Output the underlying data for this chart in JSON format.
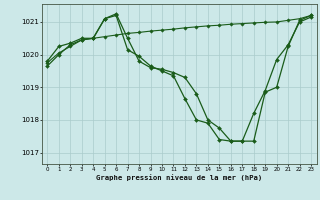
{
  "title": "Graphe pression niveau de la mer (hPa)",
  "bg_color": "#cce8e8",
  "grid_color": "#aacccc",
  "line_color": "#1a5c1a",
  "x_ticks": [
    0,
    1,
    2,
    3,
    4,
    5,
    6,
    7,
    8,
    9,
    10,
    11,
    12,
    13,
    14,
    15,
    16,
    17,
    18,
    19,
    20,
    21,
    22,
    23
  ],
  "y_ticks": [
    1017,
    1018,
    1019,
    1020,
    1021
  ],
  "ylim": [
    1016.65,
    1021.55
  ],
  "xlim": [
    -0.5,
    23.5
  ],
  "series": [
    {
      "x": [
        0,
        1,
        2,
        3,
        4,
        5,
        6,
        7,
        8,
        9,
        10,
        11,
        12,
        13,
        14,
        15,
        16,
        17,
        18,
        19,
        20,
        21,
        22,
        23
      ],
      "y": [
        1019.75,
        1020.05,
        1020.25,
        1020.45,
        1020.5,
        1020.55,
        1020.6,
        1020.65,
        1020.68,
        1020.72,
        1020.75,
        1020.78,
        1020.82,
        1020.85,
        1020.88,
        1020.9,
        1020.93,
        1020.95,
        1020.97,
        1020.99,
        1021.0,
        1021.05,
        1021.1,
        1021.2
      ],
      "marker": "D",
      "markersize": 1.8,
      "linewidth": 0.8
    },
    {
      "x": [
        0,
        1,
        2,
        3,
        4,
        5,
        6,
        7,
        8,
        9,
        10,
        11,
        12,
        13,
        14,
        15,
        16,
        17,
        18,
        19,
        20,
        21,
        22,
        23
      ],
      "y": [
        1019.8,
        1020.25,
        1020.35,
        1020.5,
        1020.5,
        1021.1,
        1021.25,
        1020.5,
        1019.8,
        1019.6,
        1019.55,
        1019.45,
        1019.3,
        1018.8,
        1018.0,
        1017.75,
        1017.35,
        1017.35,
        1017.35,
        1018.85,
        1019.0,
        1020.25,
        1021.05,
        1021.2
      ],
      "marker": "D",
      "markersize": 2.0,
      "linewidth": 0.9
    },
    {
      "x": [
        0,
        1,
        2,
        3,
        4,
        5,
        6,
        7,
        8,
        9,
        10,
        11,
        12,
        13,
        14,
        15,
        16,
        17,
        18,
        19,
        20,
        21,
        22,
        23
      ],
      "y": [
        1019.65,
        1020.0,
        1020.3,
        1020.45,
        1020.5,
        1021.1,
        1021.2,
        1020.15,
        1019.95,
        1019.65,
        1019.5,
        1019.35,
        1018.65,
        1018.0,
        1017.9,
        1017.4,
        1017.35,
        1017.35,
        1018.2,
        1018.9,
        1019.85,
        1020.3,
        1021.0,
        1021.15
      ],
      "marker": "D",
      "markersize": 2.0,
      "linewidth": 0.9
    }
  ]
}
